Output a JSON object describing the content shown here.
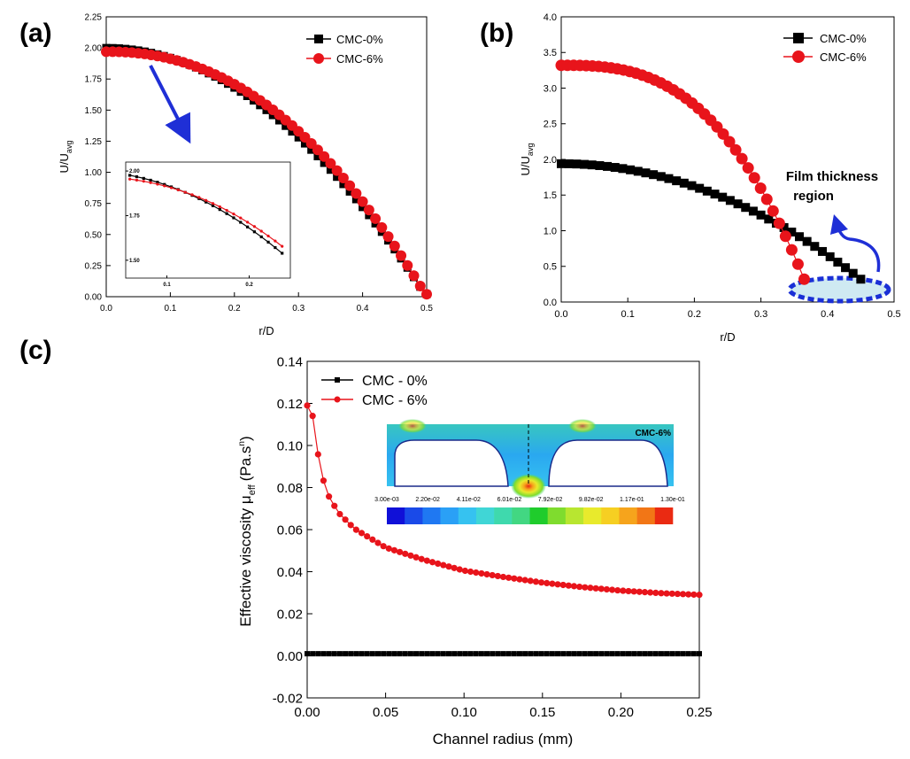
{
  "colors": {
    "black_series": "#000000",
    "red_series": "#e8141b",
    "arrow": "#1f2fd6",
    "film_region": "#1a2fd6",
    "film_fill": "#cfeaf2"
  },
  "chart_data": [
    {
      "id": "a",
      "panel_label": "(a)",
      "type": "line",
      "xlabel": "r/D",
      "ylabel": "U/U",
      "ylabel_sub": "avg",
      "xlim": [
        0.0,
        0.5
      ],
      "ylim": [
        0.0,
        2.25
      ],
      "xticks": [
        "0.0",
        "0.1",
        "0.2",
        "0.3",
        "0.4",
        "0.5"
      ],
      "yticks": [
        "0.00",
        "0.25",
        "0.50",
        "0.75",
        "1.00",
        "1.25",
        "1.50",
        "1.75",
        "2.00",
        "2.25"
      ],
      "legend": [
        "CMC-0%",
        "CMC-6%"
      ],
      "series": [
        {
          "name": "CMC-0%",
          "marker": "square",
          "profile": {
            "u0": 2.0,
            "exponent": 2.0
          },
          "points": 51
        },
        {
          "name": "CMC-6%",
          "marker": "circle",
          "profile": {
            "u0": 1.97,
            "exponent": 2.2
          },
          "points": 51
        }
      ],
      "inset": {
        "xlim": [
          0.05,
          0.25
        ],
        "ylim": [
          1.4,
          2.05
        ],
        "xticks": [
          "0.1",
          "0.2"
        ],
        "yticks": [
          "1.50",
          "1.75",
          "2.00"
        ]
      }
    },
    {
      "id": "b",
      "panel_label": "(b)",
      "type": "line",
      "xlabel": "r/D",
      "ylabel": "U/U",
      "ylabel_sub": "avg",
      "xlim": [
        0.0,
        0.5
      ],
      "ylim": [
        0.0,
        4.0
      ],
      "xticks": [
        "0.0",
        "0.1",
        "0.2",
        "0.3",
        "0.4",
        "0.5"
      ],
      "yticks": [
        "0.0",
        "0.5",
        "1.0",
        "1.5",
        "2.0",
        "2.5",
        "3.0",
        "3.5",
        "4.0"
      ],
      "legend": [
        "CMC-0%",
        "CMC-6%"
      ],
      "series": [
        {
          "name": "CMC-0%",
          "marker": "square",
          "profile": {
            "u0": 1.94,
            "rmax": 0.45,
            "ymin": 0.32,
            "exponent": 2.0
          },
          "points": 40
        },
        {
          "name": "CMC-6%",
          "marker": "circle",
          "profile": {
            "u0": 3.32,
            "rmax": 0.365,
            "ymin": 0.32,
            "exponent": 2.8
          },
          "points": 40
        }
      ],
      "annotation": [
        "Film thickness",
        "region"
      ]
    },
    {
      "id": "c",
      "panel_label": "(c)",
      "type": "line",
      "xlabel": "Channel radius (mm)",
      "ylabel": "Effective viscosity μ",
      "ylabel_sub": "eff",
      "ylabel_unit": "(Pa.s",
      "ylabel_sup": "n",
      "ylabel_close": ")",
      "xlim": [
        0.0,
        0.25
      ],
      "ylim": [
        -0.02,
        0.14
      ],
      "xticks": [
        "0.00",
        "0.05",
        "0.10",
        "0.15",
        "0.20",
        "0.25"
      ],
      "yticks": [
        "-0.02",
        "0.00",
        "0.02",
        "0.04",
        "0.06",
        "0.08",
        "0.10",
        "0.12",
        "0.14"
      ],
      "legend": [
        "CMC - 0%",
        "CMC - 6%"
      ],
      "series": [
        {
          "name": "CMC - 0%",
          "marker": "square",
          "constant": 0.001,
          "points": 73
        },
        {
          "name": "CMC - 6%",
          "marker": "circle",
          "x": [
            0.0,
            0.0035,
            0.007,
            0.0105,
            0.014,
            0.02,
            0.03,
            0.05,
            0.075,
            0.1,
            0.125,
            0.15,
            0.175,
            0.2,
            0.225,
            0.25
          ],
          "y": [
            0.119,
            0.114,
            0.0955,
            0.083,
            0.0755,
            0.068,
            0.0605,
            0.0515,
            0.0455,
            0.0405,
            0.0375,
            0.0348,
            0.0327,
            0.031,
            0.0298,
            0.029
          ]
        }
      ],
      "contour": {
        "label": "CMC-6%",
        "colorbar_ticks": [
          "3.00e-03",
          "2.20e-02",
          "4.11e-02",
          "6.01e-02",
          "7.92e-02",
          "9.82e-02",
          "1.17e-01",
          "1.30e-01"
        ],
        "colorbar_colors": [
          "#1010d8",
          "#1a4ae8",
          "#1f78f2",
          "#2aa0f6",
          "#36c2f0",
          "#40d6d6",
          "#3fd9ad",
          "#42d782",
          "#1fcc2c",
          "#7fdc2e",
          "#b8e630",
          "#e8ea2c",
          "#f6cf22",
          "#f6a41c",
          "#f27616",
          "#ea2a12"
        ]
      }
    }
  ]
}
